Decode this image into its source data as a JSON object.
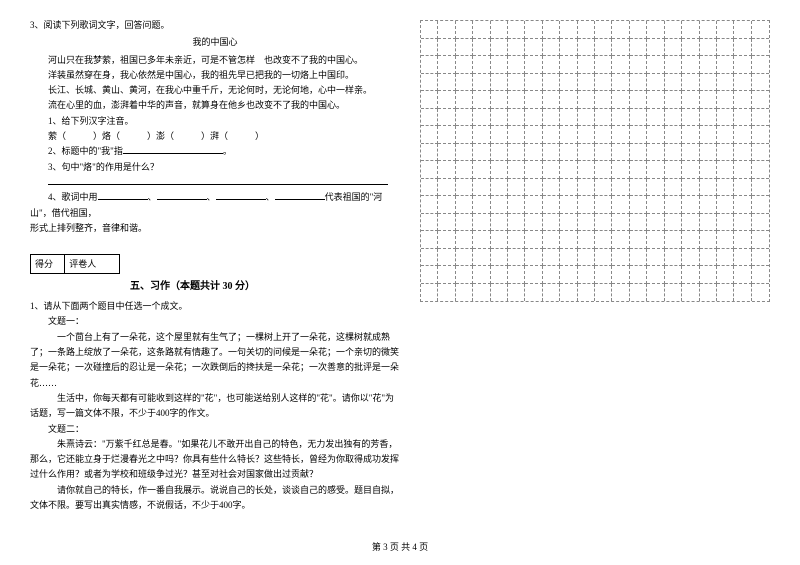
{
  "question3": {
    "number": "3、",
    "stem": "阅读下列歌词文字，回答问题。",
    "title": "我的中国心",
    "lines": [
      "河山只在我梦萦，祖国已多年未亲近，可是不管怎样　也改变不了我的中国心。",
      "洋装虽然穿在身，我心依然是中国心，我的祖先早已把我的一切烙上中国印。",
      "长江、长城、黄山、黄河，在我心中重千斤，无论何时，无论何地，心中一样亲。",
      "流在心里的血，澎湃着中华的声音，就算身在他乡也改变不了我的中国心。"
    ],
    "sub1_label": "1、给下列汉字注音。",
    "sub1_chars": "萦（　　　）烙（　　　）澎（　　　）湃（　　　）",
    "sub2": "2、标题中的\"我\"指",
    "sub3": "3、句中\"烙\"的作用是什么？",
    "sub4_prefix": "4、歌词中用",
    "sub4_suffix": "代表祖国的\"河山\"，借代祖国，",
    "sub4_line2": "形式上排列整齐，音律和谐。"
  },
  "scoreBox": {
    "label1": "得分",
    "label2": "评卷人"
  },
  "section5": {
    "title": "五、习作（本题共计 30 分）",
    "q1_number": "1、",
    "q1_stem": "请从下面两个题目中任选一个成文。",
    "topic1_label": "文题一：",
    "topic1_p1": "一个茴台上有了一朵花，这个屋里就有生气了；一棵树上开了一朵花，这棵树就成熟了；一条路上绽放了一朵花，这条路就有情趣了。一句关切的问候是一朵花；一个亲切的微笑是一朵花；一次碰撞后的忍让是一朵花；一次跌倒后的搀扶是一朵花；一次善意的批评是一朵花……",
    "topic1_p2": "生活中，你每天都有可能收到这样的\"花\"，也可能送给别人这样的\"花\"。请你以\"花\"为话题，写一篇文体不限，不少于400字的作文。",
    "topic2_label": "文题二：",
    "topic2_p1": "朱熹诗云：\"万紫千红总是春。\"如果花儿不敢开出自己的特色，无力发出独有的芳香，那么，它还能立身于烂漫春光之中吗？你具有些什么特长？这些特长，曾经为你取得成功发挥过什么作用？或者为学校和班级争过光？甚至对社会对国家做出过贡献？",
    "topic2_p2": "请你就自己的特长，作一番自我展示。说说自己的长处，谈谈自己的感受。题目自拟，文体不限。要写出真实情感，不说假话，不少于400字。"
  },
  "footer": "第 3 页 共 4 页",
  "grid": {
    "rows": 16,
    "cols": 20
  }
}
